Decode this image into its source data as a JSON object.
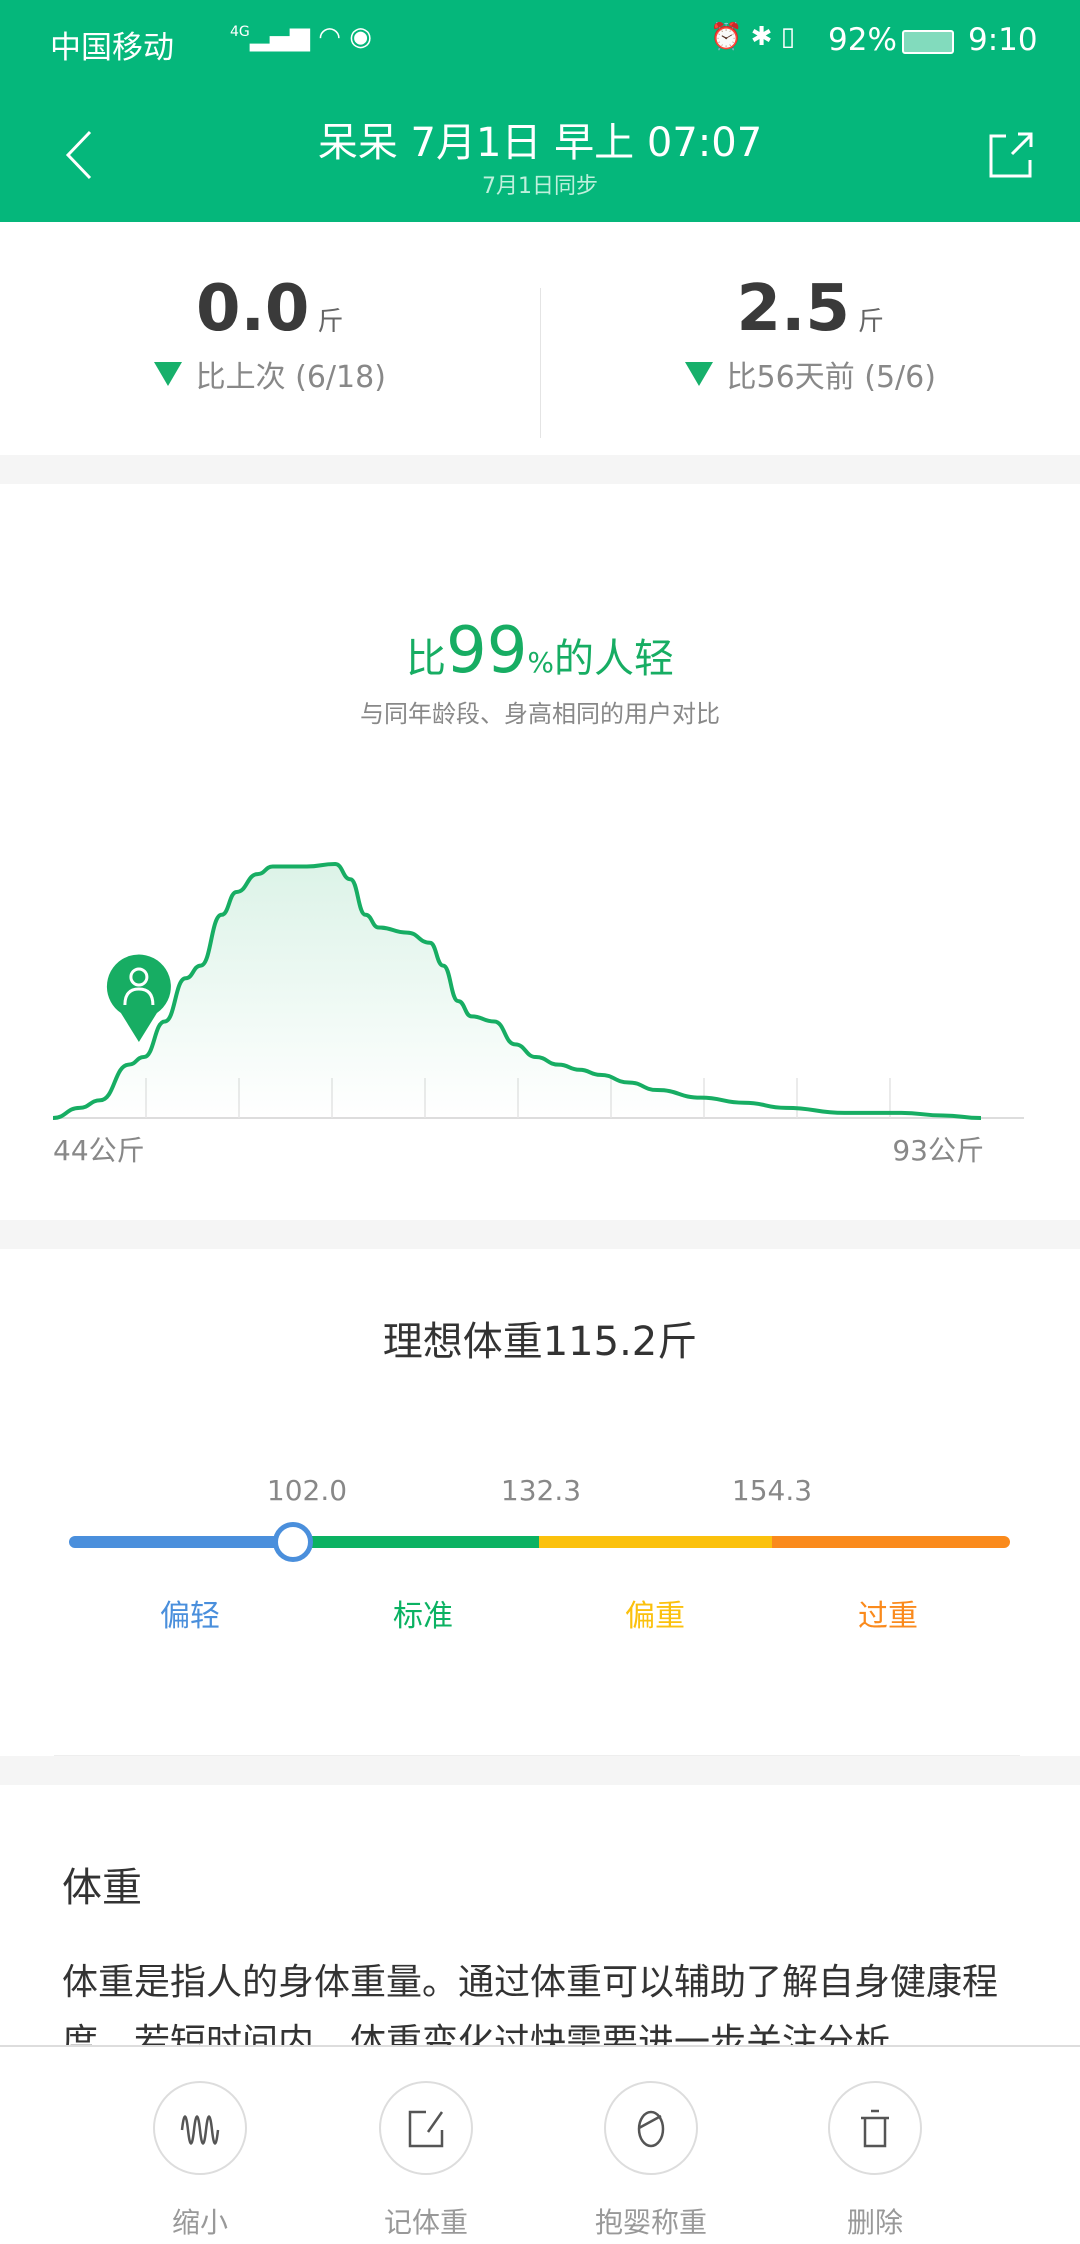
{
  "status_bar": {
    "carrier": "中国移动",
    "network": "4G",
    "battery": "92%",
    "time": "9:10"
  },
  "header": {
    "title": "呆呆 7月1日 早上 07:07",
    "subtitle": "7月1日同步"
  },
  "stats": [
    {
      "value": "0.0",
      "unit": "斤",
      "compare": "比上次 (6/18)",
      "direction": "down"
    },
    {
      "value": "2.5",
      "unit": "斤",
      "compare": "比56天前 (5/6)",
      "direction": "down"
    }
  ],
  "ranking": {
    "prefix": "比",
    "percent": "99",
    "percent_sign": "%",
    "suffix": "的人轻",
    "note": "与同年龄段、身高相同的用户对比"
  },
  "chart_data": {
    "type": "area",
    "x_min_label": "44公斤",
    "x_max_label": "93公斤",
    "xlim": [
      44,
      93
    ],
    "x": [
      44,
      45.4,
      46.5,
      48,
      48.8,
      49.9,
      51,
      51.8,
      52.9,
      53.7,
      54.8,
      55.6,
      57.4,
      58.9,
      59.7,
      60.5,
      61.2,
      62.7,
      63.9,
      64.6,
      65.4,
      66.1,
      67.3,
      68.4,
      69.5,
      70.7,
      71.8,
      72.9,
      74.4,
      75.9,
      78.2,
      80.5,
      82.7,
      85.8,
      88.8,
      91,
      93
    ],
    "y": [
      0,
      4,
      7,
      21,
      24,
      38,
      55,
      60,
      80,
      89,
      96,
      99,
      99,
      100,
      94,
      80,
      75,
      73,
      69,
      60,
      46,
      40,
      38,
      29,
      24,
      21,
      19,
      17,
      14,
      11,
      8,
      6,
      4,
      2,
      2,
      1,
      0
    ],
    "marker_x": 48.8,
    "color": "#17ad63"
  },
  "ideal": {
    "title": "理想体重115.2斤",
    "thresholds": [
      "102.0",
      "132.3",
      "154.3"
    ],
    "categories": [
      {
        "label": "偏轻",
        "color": "#4a8fdc"
      },
      {
        "label": "标准",
        "color": "#0bb262"
      },
      {
        "label": "偏重",
        "color": "#fbc10d"
      },
      {
        "label": "过重",
        "color": "#fa8a1c"
      }
    ]
  },
  "info": {
    "heading": "体重",
    "line1": "体重是指人的身体重量。通过体重可以辅助了解自身健康程",
    "line2": "度。若短时间内，体重变化过快需要进一步关注分析。"
  },
  "bottom": [
    {
      "label": "缩小",
      "icon": "waveform-icon"
    },
    {
      "label": "记体重",
      "icon": "edit-icon"
    },
    {
      "label": "抱婴称重",
      "icon": "baby-icon"
    },
    {
      "label": "删除",
      "icon": "trash-icon"
    }
  ]
}
